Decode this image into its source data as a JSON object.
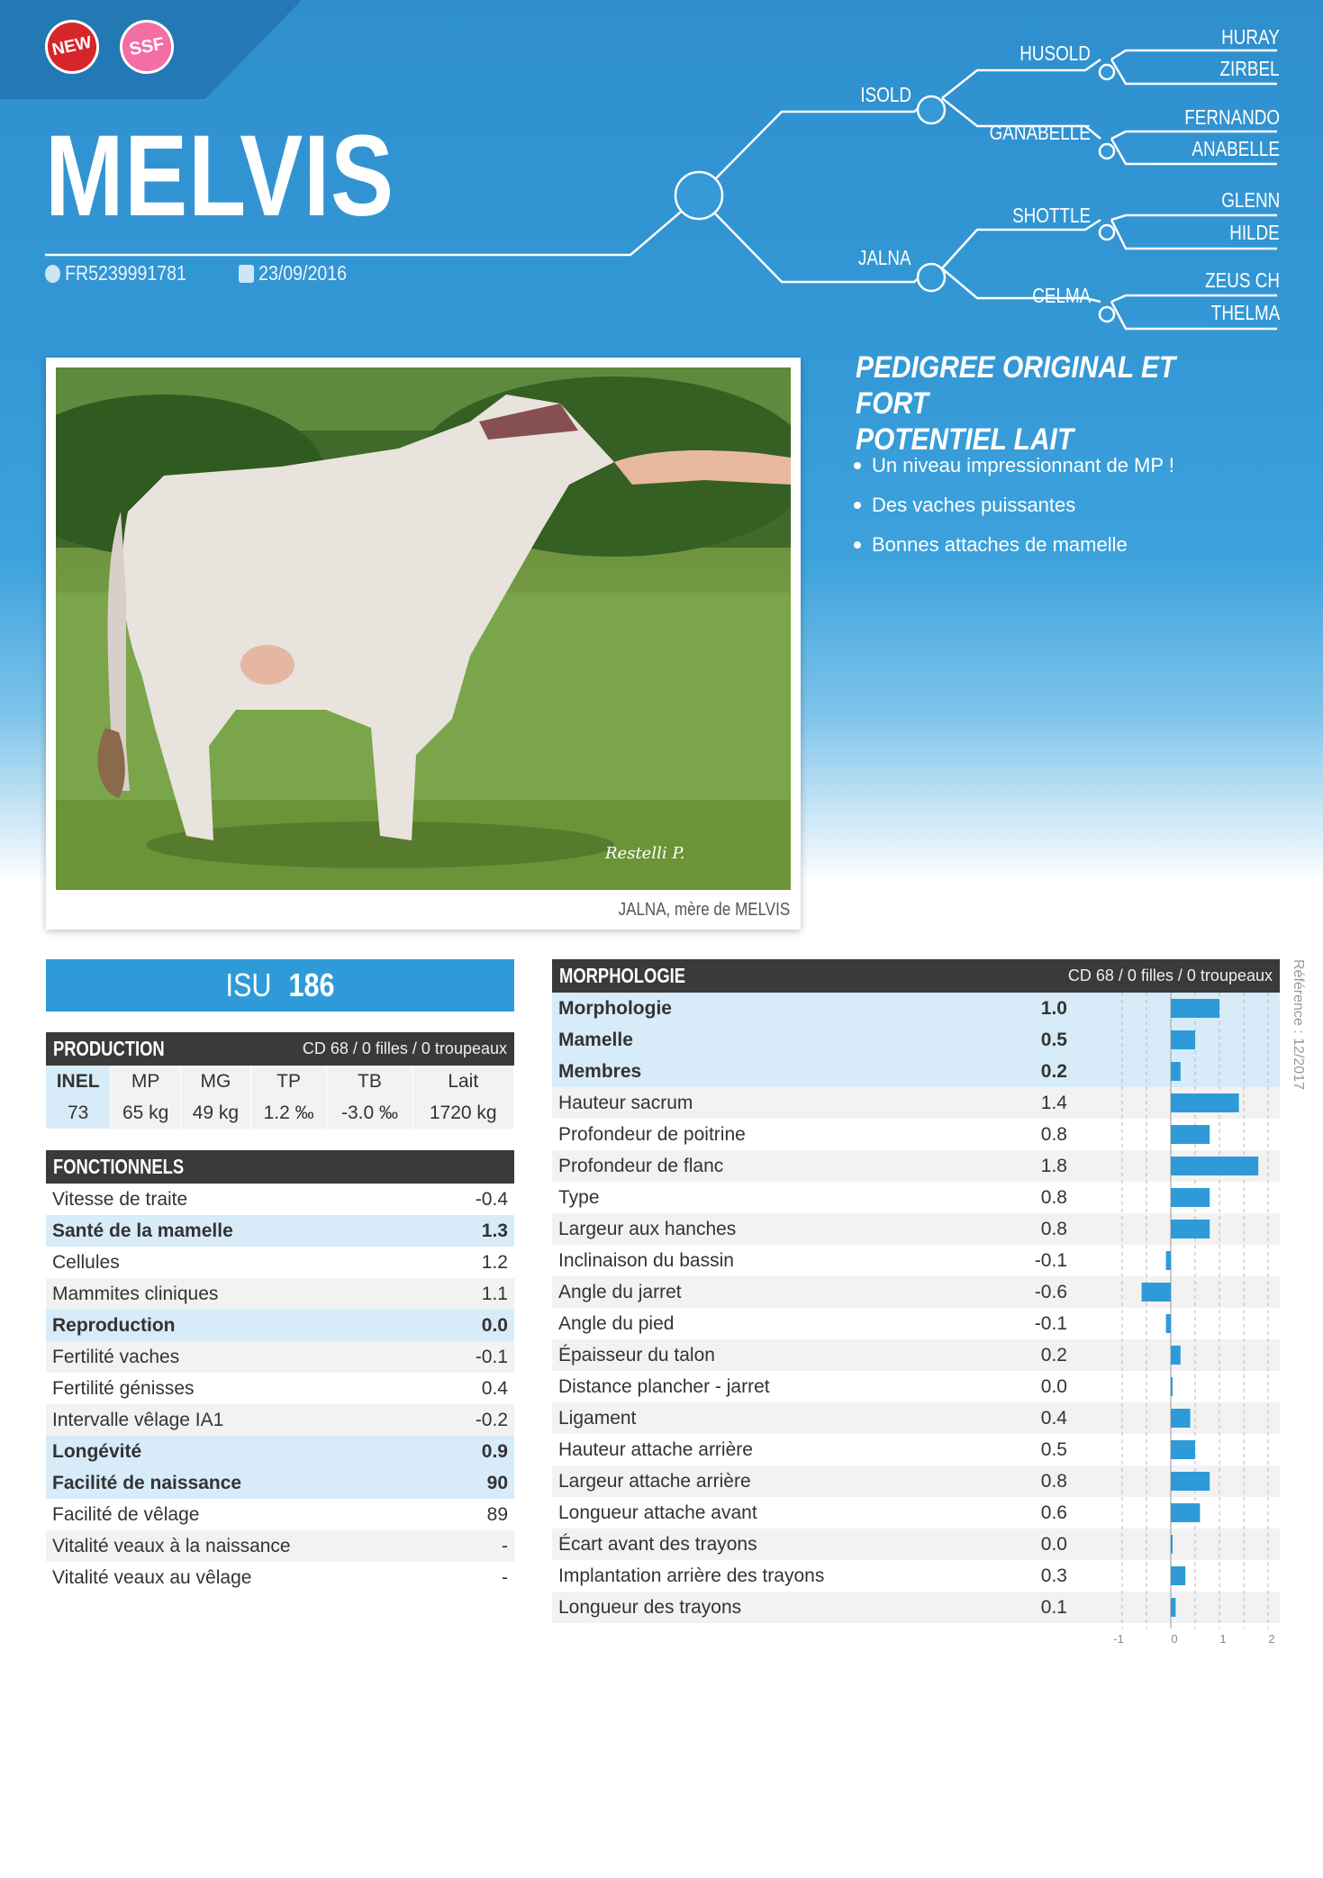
{
  "badges": {
    "new": "NEW",
    "ssf": "SSF"
  },
  "bull": {
    "name": "MELVIS",
    "id": "FR5239991781",
    "birth_date": "23/09/2016"
  },
  "pedigree": {
    "sire": "ISOLD",
    "dam": "JALNA",
    "sire_sire": "HUSOLD",
    "sire_dam": "GANABELLE",
    "dam_sire": "SHOTTLE",
    "dam_dam": "CELMA",
    "ggp": [
      "HURAY",
      "ZIRBEL",
      "FERNANDO",
      "ANABELLE",
      "GLENN",
      "HILDE",
      "ZEUS CH",
      "THELMA"
    ]
  },
  "photo": {
    "caption": "JALNA, mère de MELVIS",
    "watermark": "Restelli P."
  },
  "slogan": {
    "line1": "PEDIGREE ORIGINAL ET FORT",
    "line2": "POTENTIEL LAIT"
  },
  "bullets": [
    "Un niveau impressionnant de MP !",
    "Des vaches puissantes",
    "Bonnes attaches de mamelle"
  ],
  "isu": {
    "label": "ISU",
    "value": "186"
  },
  "production": {
    "title": "PRODUCTION",
    "subtitle": "CD 68 / 0 filles / 0 troupeaux",
    "headers": [
      "INEL",
      "MP",
      "MG",
      "TP",
      "TB",
      "Lait"
    ],
    "values": [
      "73",
      "65 kg",
      "49 kg",
      "1.2 ‰",
      "-3.0 ‰",
      "1720 kg"
    ]
  },
  "fonctionnels": {
    "title": "FONCTIONNELS",
    "rows": [
      {
        "label": "Vitesse de traite",
        "value": "-0.4",
        "bold": false
      },
      {
        "label": "Santé de la mamelle",
        "value": "1.3",
        "bold": true
      },
      {
        "label": "Cellules",
        "value": "1.2",
        "bold": false
      },
      {
        "label": "Mammites cliniques",
        "value": "1.1",
        "bold": false
      },
      {
        "label": "Reproduction",
        "value": "0.0",
        "bold": true
      },
      {
        "label": "Fertilité vaches",
        "value": "-0.1",
        "bold": false
      },
      {
        "label": "Fertilité génisses",
        "value": "0.4",
        "bold": false
      },
      {
        "label": "Intervalle vêlage IA1",
        "value": "-0.2",
        "bold": false
      },
      {
        "label": "Longévité",
        "value": "0.9",
        "bold": true
      },
      {
        "label": "Facilité de naissance",
        "value": "90",
        "bold": true
      },
      {
        "label": "Facilité de vêlage",
        "value": "89",
        "bold": false
      },
      {
        "label": "Vitalité veaux à la naissance",
        "value": "-",
        "bold": false
      },
      {
        "label": "Vitalité veaux au vêlage",
        "value": "-",
        "bold": false
      }
    ]
  },
  "morphologie": {
    "title": "MORPHOLOGIE",
    "subtitle": "CD 68 / 0 filles / 0 troupeaux"
  },
  "chart_data": {
    "type": "bar",
    "orientation": "horizontal",
    "categories": [
      "Morphologie",
      "Mamelle",
      "Membres",
      "Hauteur sacrum",
      "Profondeur de poitrine",
      "Profondeur de flanc",
      "Type",
      "Largeur aux hanches",
      "Inclinaison du bassin",
      "Angle du jarret",
      "Angle du pied",
      "Épaisseur du talon",
      "Distance plancher - jarret",
      "Ligament",
      "Hauteur attache arrière",
      "Largeur attache arrière",
      "Longueur attache avant",
      "Écart avant des trayons",
      "Implantation arrière des trayons",
      "Longueur des trayons"
    ],
    "values": [
      1.0,
      0.5,
      0.2,
      1.4,
      0.8,
      1.8,
      0.8,
      0.8,
      -0.1,
      -0.6,
      -0.1,
      0.2,
      0.0,
      0.4,
      0.5,
      0.8,
      0.6,
      0.0,
      0.3,
      0.1
    ],
    "value_labels": [
      "1.0",
      "0.5",
      "0.2",
      "1.4",
      "0.8",
      "1.8",
      "0.8",
      "0.8",
      "-0.1",
      "-0.6",
      "-0.1",
      "0.2",
      "0.0",
      "0.4",
      "0.5",
      "0.8",
      "0.6",
      "0.0",
      "0.3",
      "0.1"
    ],
    "bold_rows": [
      0,
      1,
      2
    ],
    "xlim": [
      -1,
      2
    ],
    "tick_labels": [
      "-1",
      "0",
      "1",
      "2"
    ],
    "bar_color": "#2e9bd8",
    "grid": "dashed"
  },
  "reference": "Référence : 12/2017"
}
